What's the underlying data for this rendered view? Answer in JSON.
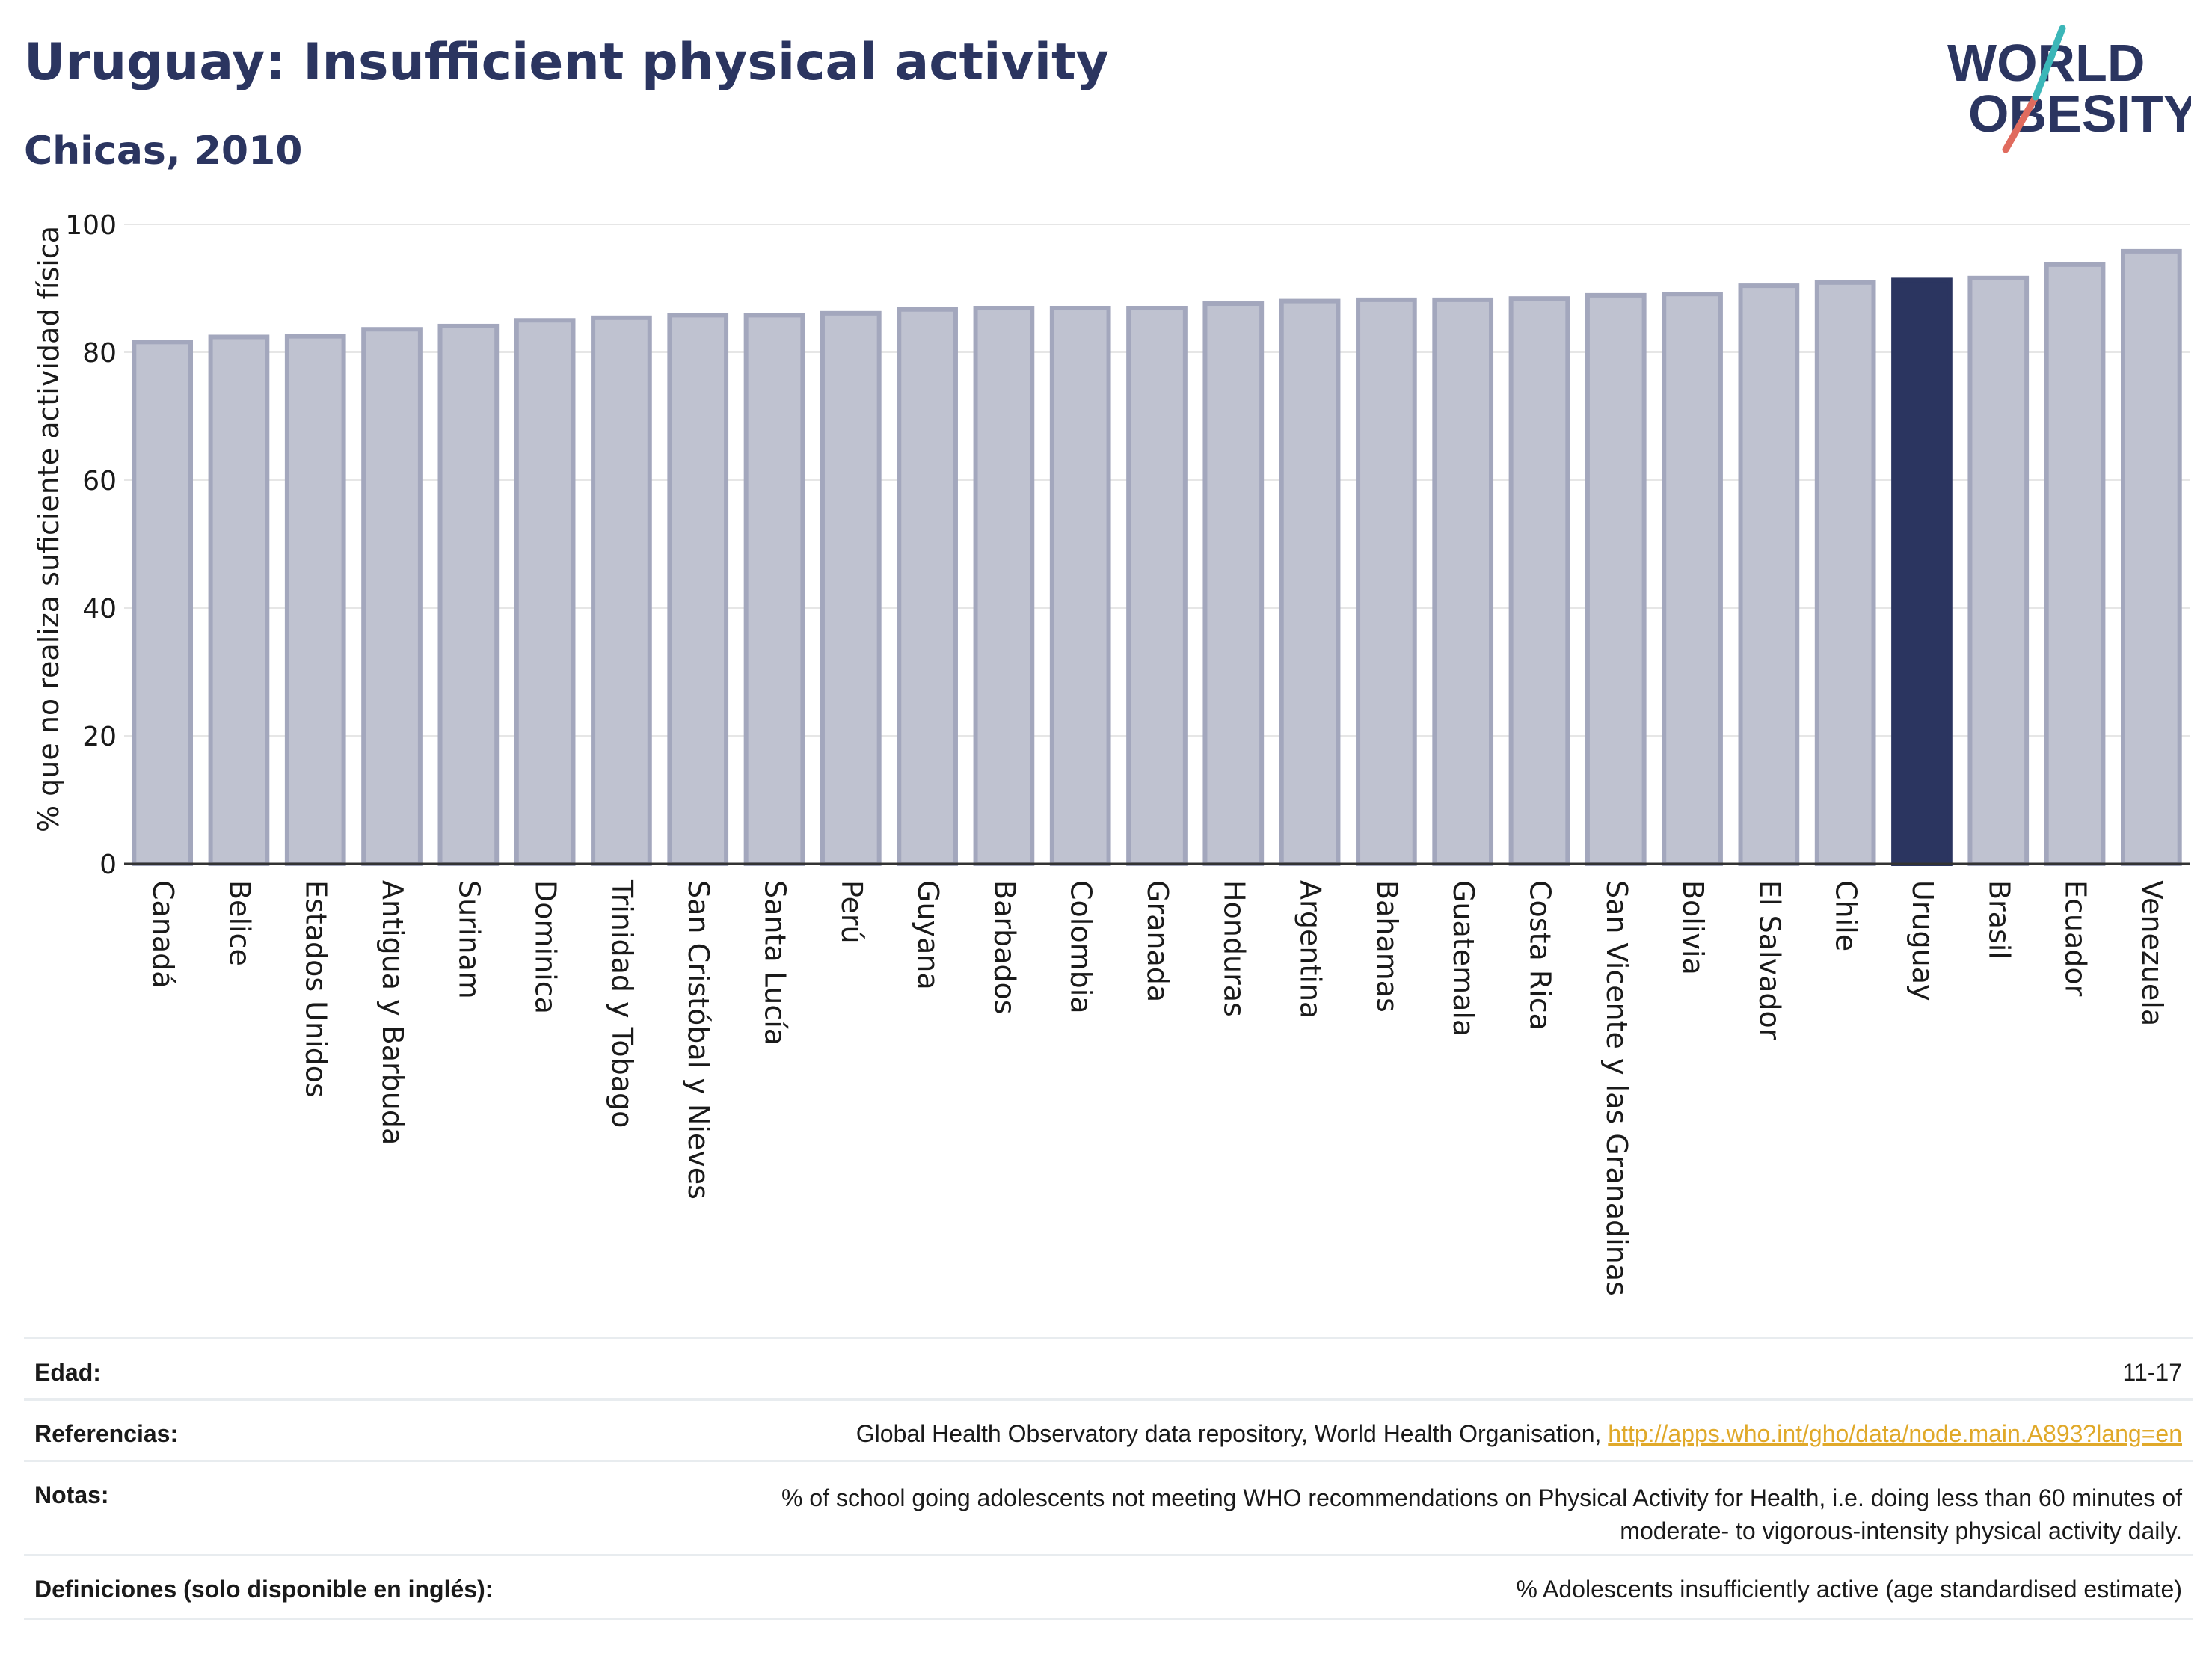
{
  "header": {
    "title": "Uruguay: Insufficient physical activity",
    "subtitle": "Chicas, 2010"
  },
  "logo": {
    "line1": "WORLD",
    "line2": "OBESITY"
  },
  "colors": {
    "bar": "#bfc2d0",
    "bar_stroke": "#a3a7bd",
    "highlight": "#2b3560",
    "grid": "#e6e6e6",
    "link": "#e0a92a"
  },
  "chart_data": {
    "type": "bar",
    "title": "",
    "xlabel": "",
    "ylabel": "% que no realiza suficiente actividad física",
    "ylim": [
      0,
      100
    ],
    "yticks": [
      0,
      20,
      40,
      60,
      80,
      100
    ],
    "highlight": "Uruguay",
    "categories": [
      "Canadá",
      "Belice",
      "Estados Unidos",
      "Antigua y Barbuda",
      "Surinam",
      "Dominica",
      "Trinidad y Tobago",
      "San Cristóbal y Nieves",
      "Santa Lucía",
      "Perú",
      "Guyana",
      "Barbados",
      "Colombia",
      "Granada",
      "Honduras",
      "Argentina",
      "Bahamas",
      "Guatemala",
      "Costa Rica",
      "San Vicente y las Granadinas",
      "Bolivia",
      "El Salvador",
      "Chile",
      "Uruguay",
      "Brasil",
      "Ecuador",
      "Venezuela"
    ],
    "values": [
      81.6,
      82.4,
      82.5,
      83.6,
      84.1,
      85.0,
      85.4,
      85.8,
      85.8,
      86.1,
      86.7,
      86.9,
      86.9,
      86.9,
      87.6,
      88.0,
      88.2,
      88.2,
      88.4,
      88.9,
      89.1,
      90.4,
      90.9,
      91.3,
      91.6,
      93.7,
      95.8
    ]
  },
  "meta": {
    "age_label": "Edad:",
    "age_value": "11-17",
    "refs_label": "Referencias:",
    "refs_text": "Global Health Observatory data repository, World Health Organisation, ",
    "refs_link": "http://apps.who.int/gho/data/node.main.A893?lang=en",
    "notes_label": "Notas:",
    "notes_line1": "% of school going adolescents not meeting WHO recommendations on Physical Activity for Health, i.e. doing less than 60 minutes of",
    "notes_line2": "moderate- to vigorous-intensity physical activity daily.",
    "defs_label": "Definiciones (solo disponible en inglés):",
    "defs_value": "% Adolescents insufficiently active (age standardised estimate)"
  }
}
